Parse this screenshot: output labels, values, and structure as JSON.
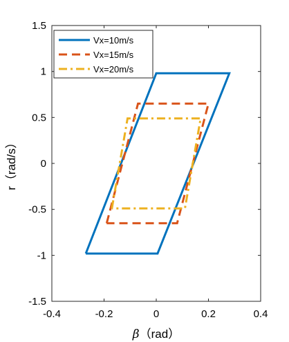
{
  "chart_data": {
    "type": "line",
    "title": "",
    "xlabel_symbol": "β",
    "xlabel_unit": "（rad）",
    "ylabel": "r（rad/s）",
    "xlim": [
      -0.4,
      0.4
    ],
    "ylim": [
      -1.5,
      1.5
    ],
    "xticks": [
      -0.4,
      -0.2,
      0,
      0.2,
      0.4
    ],
    "yticks": [
      -1.5,
      -1,
      -0.5,
      0,
      0.5,
      1,
      1.5
    ],
    "xtick_labels": [
      "-0.4",
      "-0.2",
      "0",
      "0.2",
      "0.4"
    ],
    "ytick_labels": [
      "-1.5",
      "-1",
      "-0.5",
      "0",
      "0.5",
      "1",
      "1.5"
    ],
    "grid": false,
    "legend_position": "top-left",
    "series": [
      {
        "name": "Vx=10m/s",
        "color": "#0072BD",
        "style": "solid",
        "x": [
          -0.27,
          0.0,
          0.28,
          0.005,
          -0.27
        ],
        "y": [
          -0.98,
          0.98,
          0.98,
          -0.98,
          -0.98
        ]
      },
      {
        "name": "Vx=15m/s",
        "color": "#D95319",
        "style": "dashed",
        "x": [
          -0.19,
          -0.07,
          0.2,
          0.08,
          -0.19
        ],
        "y": [
          -0.65,
          0.65,
          0.65,
          -0.65,
          -0.65
        ]
      },
      {
        "name": "Vx=20m/s",
        "color": "#EDB120",
        "style": "dashdot",
        "x": [
          -0.17,
          -0.11,
          0.17,
          0.11,
          -0.17
        ],
        "y": [
          -0.49,
          0.49,
          0.49,
          -0.49,
          -0.49
        ]
      }
    ]
  }
}
